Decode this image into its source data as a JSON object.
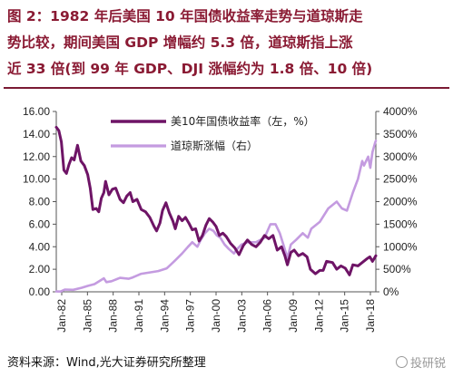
{
  "figure": {
    "title_lines": [
      "图 2：1982 年后美国 10 年国债收益率走势与道琼斯走",
      "势比较，期间美国 GDP 增幅约 5.3 倍，道琼斯指上涨",
      "近 33 倍(到 99 年 GDP、DJI 涨幅约为 1.8 倍、10 倍)"
    ],
    "source": "资料来源：Wind,光大证券研究所整理",
    "watermark": "投研锐"
  },
  "colors": {
    "title": "#8a1a33",
    "series_yield": "#6e1466",
    "series_dji": "#c49be0"
  },
  "chart_data": {
    "type": "line",
    "x_tick_labels": [
      "Jan-82",
      "Jan-85",
      "Jan-88",
      "Jan-91",
      "Jan-94",
      "Jan-97",
      "Jan-00",
      "Jan-03",
      "Jan-06",
      "Jan-09",
      "Jan-12",
      "Jan-15",
      "Jan-18"
    ],
    "x_range": [
      1982.0,
      2019.6
    ],
    "y_left": {
      "ticks": [
        "0.00",
        "2.00",
        "4.00",
        "6.00",
        "8.00",
        "10.00",
        "12.00",
        "14.00",
        "16.00"
      ],
      "range": [
        0,
        16
      ]
    },
    "y_right": {
      "ticks": [
        "0%",
        "500%",
        "1000%",
        "1500%",
        "2000%",
        "2500%",
        "3000%",
        "3500%",
        "4000%"
      ],
      "range": [
        0,
        4000
      ]
    },
    "legend_position": "top-center",
    "series": [
      {
        "name": "美10年国债收益率（左，%）",
        "axis": "left",
        "x": [
          1982.0,
          1982.3,
          1982.6,
          1982.9,
          1983.2,
          1983.5,
          1983.8,
          1984.1,
          1984.5,
          1984.9,
          1985.3,
          1985.7,
          1986.0,
          1986.3,
          1986.7,
          1987.0,
          1987.3,
          1987.6,
          1987.8,
          1988.2,
          1988.6,
          1989.0,
          1989.5,
          1989.9,
          1990.3,
          1990.7,
          1991.0,
          1991.5,
          1992.0,
          1992.5,
          1993.0,
          1993.5,
          1993.8,
          1994.2,
          1994.5,
          1994.9,
          1995.3,
          1995.7,
          1996.0,
          1996.4,
          1996.8,
          1997.2,
          1997.6,
          1998.0,
          1998.4,
          1998.8,
          1999.2,
          1999.6,
          2000.0,
          2000.4,
          2000.8,
          2001.2,
          2001.6,
          2002.0,
          2002.5,
          2003.0,
          2003.5,
          2004.0,
          2004.5,
          2005.0,
          2005.5,
          2006.0,
          2006.5,
          2007.0,
          2007.5,
          2008.0,
          2008.5,
          2008.9,
          2009.2,
          2009.6,
          2010.0,
          2010.5,
          2011.0,
          2011.5,
          2011.9,
          2012.5,
          2013.0,
          2013.4,
          2013.8,
          2014.5,
          2015.0,
          2015.5,
          2016.0,
          2016.5,
          2016.9,
          2017.5,
          2018.0,
          2018.5,
          2018.9,
          2019.2,
          2019.6
        ],
        "values": [
          14.6,
          14.3,
          13.3,
          10.8,
          10.5,
          11.3,
          11.9,
          11.7,
          13.0,
          11.6,
          11.2,
          10.4,
          9.2,
          7.3,
          7.4,
          7.1,
          8.3,
          8.8,
          9.8,
          8.6,
          9.1,
          9.2,
          8.2,
          7.9,
          8.5,
          8.8,
          8.0,
          8.2,
          7.3,
          7.1,
          6.6,
          5.8,
          5.4,
          6.1,
          7.2,
          7.9,
          7.0,
          6.3,
          5.6,
          6.7,
          6.3,
          6.6,
          6.1,
          5.5,
          5.6,
          4.5,
          5.0,
          5.9,
          6.5,
          6.2,
          5.8,
          5.0,
          5.2,
          4.9,
          4.3,
          3.9,
          3.3,
          4.1,
          4.6,
          4.2,
          4.0,
          4.4,
          5.0,
          4.7,
          5.0,
          3.7,
          4.0,
          3.2,
          2.4,
          3.5,
          3.7,
          3.2,
          3.4,
          3.1,
          2.0,
          1.6,
          1.9,
          1.9,
          2.7,
          2.6,
          2.0,
          2.3,
          2.1,
          1.5,
          2.4,
          2.3,
          2.6,
          2.9,
          3.1,
          2.7,
          3.2
        ]
      },
      {
        "name": "道琼斯涨幅（右）",
        "axis": "right",
        "x": [
          1982.0,
          1982.5,
          1983.0,
          1984.0,
          1985.0,
          1985.7,
          1986.5,
          1987.6,
          1987.9,
          1988.5,
          1989.5,
          1990.5,
          1991.0,
          1992.0,
          1993.0,
          1994.0,
          1995.0,
          1995.5,
          1996.0,
          1996.8,
          1997.5,
          1998.0,
          1998.6,
          1999.0,
          1999.5,
          2000.0,
          2000.5,
          2000.9,
          2001.3,
          2001.8,
          2002.3,
          2002.9,
          2003.3,
          2003.8,
          2004.5,
          2005.5,
          2006.5,
          2007.2,
          2007.8,
          2008.3,
          2008.8,
          2009.2,
          2009.6,
          2010.2,
          2011.0,
          2011.6,
          2012.0,
          2013.0,
          2014.0,
          2015.0,
          2015.6,
          2016.2,
          2016.9,
          2017.5,
          2018.0,
          2018.2,
          2018.7,
          2018.95,
          2019.2,
          2019.5,
          2019.6
        ],
        "values": [
          8,
          7,
          50,
          45,
          90,
          130,
          170,
          300,
          215,
          235,
          310,
          290,
          320,
          400,
          430,
          460,
          520,
          610,
          700,
          850,
          1000,
          1100,
          1000,
          1150,
          1300,
          1400,
          1350,
          1250,
          1200,
          1050,
          950,
          850,
          950,
          1050,
          1100,
          1100,
          1200,
          1500,
          1500,
          1300,
          1000,
          750,
          1050,
          1150,
          1300,
          1200,
          1400,
          1550,
          1850,
          2000,
          1850,
          1800,
          2200,
          2500,
          2900,
          2800,
          3000,
          2750,
          3100,
          3300,
          3350
        ]
      }
    ]
  }
}
